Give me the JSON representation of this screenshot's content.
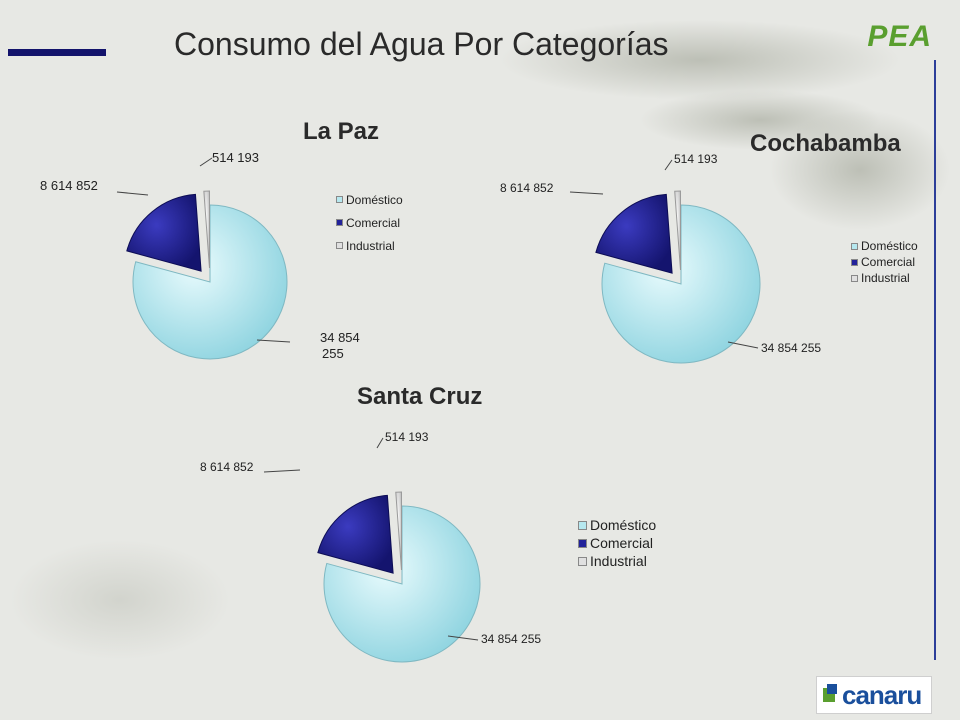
{
  "slide": {
    "title": "Consumo del Agua Por Categorías",
    "brand": "PEA",
    "logo_text": "canaru"
  },
  "colors": {
    "domestico": "#b6e8ef",
    "comercial": "#22229a",
    "industrial": "#e0e0e0",
    "title_bar": "#13136b",
    "brand": "#5a9f2f"
  },
  "chart_data": [
    {
      "type": "pie",
      "title": "La Paz",
      "categories": [
        "Doméstico",
        "Comercial",
        "Industrial"
      ],
      "values": [
        34854255,
        8614852,
        514193
      ],
      "data_labels": [
        "34 854 255",
        "8 614 852",
        "514 193"
      ],
      "legend": "right"
    },
    {
      "type": "pie",
      "title": "Cochabamba",
      "categories": [
        "Doméstico",
        "Comercial",
        "Industrial"
      ],
      "values": [
        34854255,
        8614852,
        514193
      ],
      "data_labels": [
        "34 854 255",
        "8 614 852",
        "514 193"
      ],
      "legend": "right"
    },
    {
      "type": "pie",
      "title": "Santa Cruz",
      "categories": [
        "Doméstico",
        "Comercial",
        "Industrial"
      ],
      "values": [
        34854255,
        8614852,
        514193
      ],
      "data_labels": [
        "34 854 255",
        "8 614 852",
        "514 193"
      ],
      "legend": "right"
    }
  ]
}
